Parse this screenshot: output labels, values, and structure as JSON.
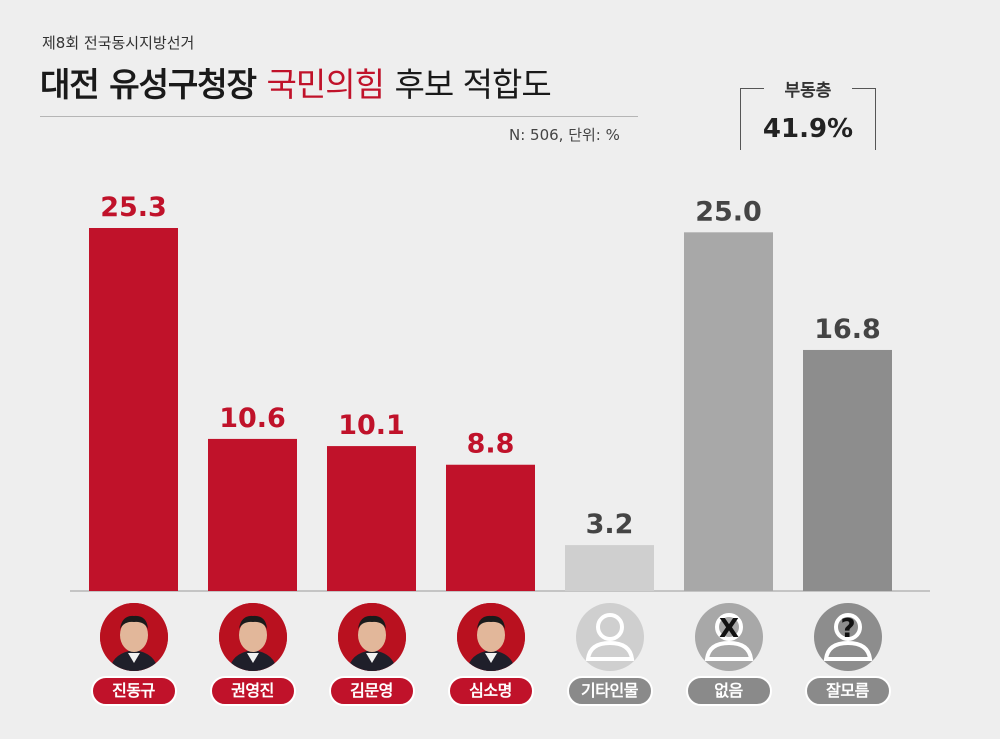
{
  "header": {
    "subtitle": "제8회 전국동시지방선거",
    "title_part1": "대전 유성구청장",
    "title_part2": "국민의힘",
    "title_part3": "후보 적합도",
    "note": "N: 506, 단위: %"
  },
  "undecided": {
    "label": "부동층",
    "value": "41.9%"
  },
  "colors": {
    "accent": "#c0122a",
    "neutral_light": "#cfcfcf",
    "neutral_mid": "#a8a8a8",
    "neutral_dark": "#8d8d8d"
  },
  "chart_data": {
    "type": "bar",
    "categories": [
      "진동규",
      "권영진",
      "김문영",
      "심소명",
      "기타인물",
      "없음",
      "잘모름"
    ],
    "values": [
      25.3,
      10.6,
      10.1,
      8.8,
      3.2,
      25.0,
      16.8
    ],
    "value_labels": [
      "25.3",
      "10.6",
      "10.1",
      "8.8",
      "3.2",
      "25.0",
      "16.8"
    ],
    "bar_colors": [
      "#c0122a",
      "#c0122a",
      "#c0122a",
      "#c0122a",
      "#cfcfcf",
      "#a8a8a8",
      "#8d8d8d"
    ],
    "label_colors": [
      "#c0122a",
      "#c0122a",
      "#c0122a",
      "#c0122a",
      "#444444",
      "#444444",
      "#444444"
    ],
    "icons": [
      "candidate-photo",
      "candidate-photo",
      "candidate-photo",
      "candidate-photo",
      "person-icon",
      "x-icon",
      "question-icon"
    ],
    "ylim": [
      0,
      30
    ],
    "grid": false
  }
}
